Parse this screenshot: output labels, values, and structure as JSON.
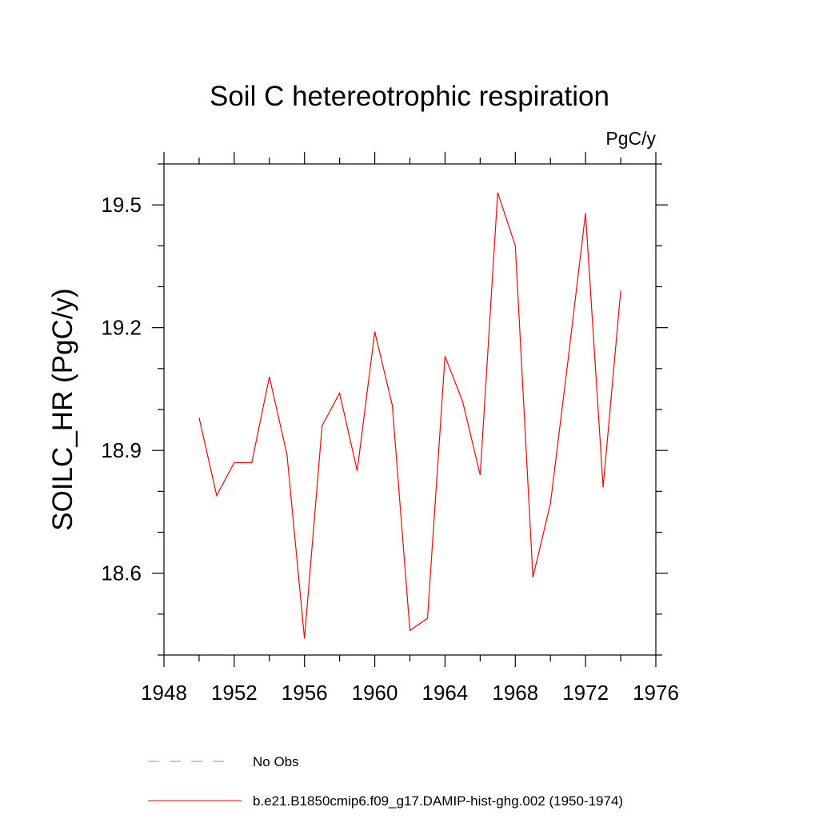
{
  "chart_data": {
    "type": "line",
    "title": "Soil C hetereotrophic respiration",
    "units": "PgC/y",
    "ylabel": "SOILC_HR  (PgC/y)",
    "xlabel": "",
    "xlim": [
      1948,
      1976
    ],
    "ylim": [
      18.4,
      19.6
    ],
    "x_ticks": [
      1948,
      1952,
      1956,
      1960,
      1964,
      1968,
      1972,
      1976
    ],
    "x_tick_labels": [
      "1948",
      "1952",
      "1956",
      "1960",
      "1964",
      "1968",
      "1972",
      "1976"
    ],
    "y_ticks": [
      18.6,
      18.9,
      19.2,
      19.5
    ],
    "y_tick_labels": [
      "18.6",
      "18.9",
      "19.2",
      "19.5"
    ],
    "y_minor_step": 0.1,
    "x_minor_step": 2,
    "grid": false,
    "legend_position": "bottom",
    "series": [
      {
        "name": "b.e21.B1850cmip6.f09_g17.DAMIP-hist-ghg.002 (1950-1974)",
        "color": "#ff0000",
        "style": "solid",
        "x": [
          1950,
          1951,
          1952,
          1953,
          1954,
          1955,
          1956,
          1957,
          1958,
          1959,
          1960,
          1961,
          1962,
          1963,
          1964,
          1965,
          1966,
          1967,
          1968,
          1969,
          1970,
          1971,
          1972,
          1973,
          1974
        ],
        "values": [
          18.98,
          18.79,
          18.87,
          18.87,
          19.08,
          18.89,
          18.44,
          18.96,
          19.04,
          18.85,
          19.19,
          19.01,
          18.46,
          18.49,
          19.13,
          19.02,
          18.84,
          19.53,
          19.4,
          18.59,
          18.77,
          19.12,
          19.48,
          18.81,
          19.29
        ]
      }
    ],
    "legend": [
      {
        "label": "No Obs",
        "color": "#8888cc",
        "style": "dashed"
      },
      {
        "label": "b.e21.B1850cmip6.f09_g17.DAMIP-hist-ghg.002 (1950-1974)",
        "color": "#ff0000",
        "style": "solid"
      }
    ]
  }
}
